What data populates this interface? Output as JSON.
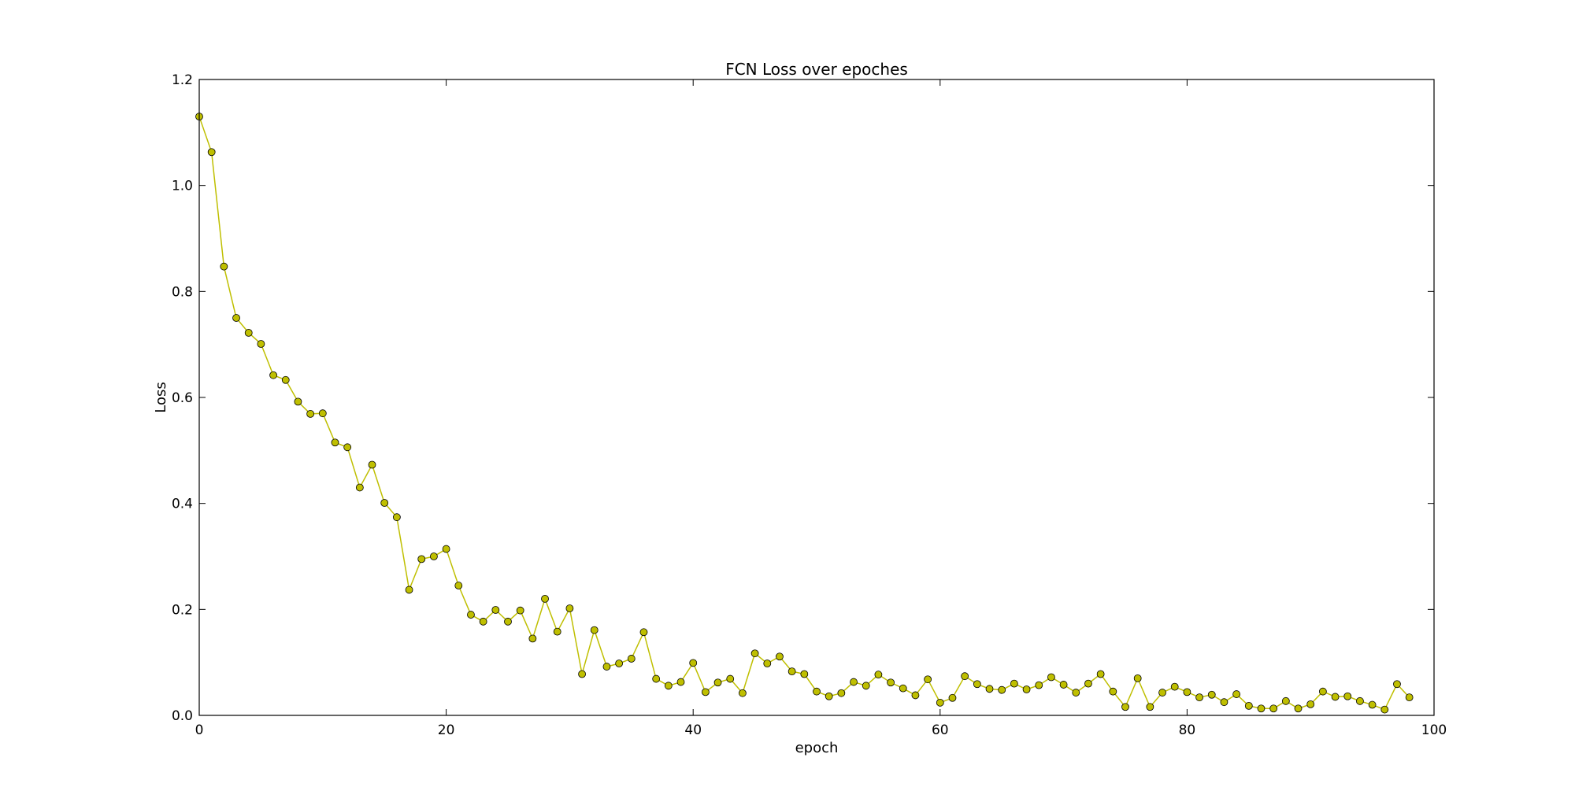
{
  "chart_data": {
    "type": "line",
    "title": "FCN Loss over epoches",
    "xlabel": "epoch",
    "ylabel": "Loss",
    "xlim": [
      0,
      100
    ],
    "ylim": [
      0,
      1.2
    ],
    "xticks": [
      0,
      20,
      40,
      60,
      80,
      100
    ],
    "xtick_labels": [
      "0",
      "20",
      "40",
      "60",
      "80",
      "100"
    ],
    "yticks": [
      0,
      0.2,
      0.4,
      0.6,
      0.8,
      1.0,
      1.2
    ],
    "ytick_labels": [
      "0.0",
      "0.2",
      "0.4",
      "0.6",
      "0.8",
      "1.0",
      "1.2"
    ],
    "grid": false,
    "legend": "none",
    "series": [
      {
        "color": "#bfbf00",
        "marker": "circle",
        "x": [
          0,
          1,
          2,
          3,
          4,
          5,
          6,
          7,
          8,
          9,
          10,
          11,
          12,
          13,
          14,
          15,
          16,
          17,
          18,
          19,
          20,
          21,
          22,
          23,
          24,
          25,
          26,
          27,
          28,
          29,
          30,
          31,
          32,
          33,
          34,
          35,
          36,
          37,
          38,
          39,
          40,
          41,
          42,
          43,
          44,
          45,
          46,
          47,
          48,
          49,
          50,
          51,
          52,
          53,
          54,
          55,
          56,
          57,
          58,
          59,
          60,
          61,
          62,
          63,
          64,
          65,
          66,
          67,
          68,
          69,
          70,
          71,
          72,
          73,
          74,
          75,
          76,
          77,
          78,
          79,
          80,
          81,
          82,
          83,
          84,
          85,
          86,
          87,
          88,
          89,
          90,
          91,
          92,
          93,
          94,
          95,
          96,
          97,
          98
        ],
        "y": [
          1.13,
          1.063,
          0.847,
          0.75,
          0.722,
          0.701,
          0.642,
          0.633,
          0.592,
          0.569,
          0.57,
          0.515,
          0.506,
          0.43,
          0.473,
          0.401,
          0.374,
          0.237,
          0.295,
          0.3,
          0.314,
          0.245,
          0.19,
          0.177,
          0.199,
          0.177,
          0.198,
          0.145,
          0.22,
          0.158,
          0.202,
          0.078,
          0.161,
          0.092,
          0.098,
          0.107,
          0.157,
          0.069,
          0.056,
          0.063,
          0.099,
          0.044,
          0.062,
          0.069,
          0.042,
          0.117,
          0.098,
          0.111,
          0.083,
          0.078,
          0.045,
          0.036,
          0.042,
          0.063,
          0.056,
          0.077,
          0.062,
          0.051,
          0.038,
          0.068,
          0.024,
          0.033,
          0.074,
          0.059,
          0.05,
          0.048,
          0.06,
          0.049,
          0.057,
          0.072,
          0.058,
          0.043,
          0.06,
          0.078,
          0.045,
          0.016,
          0.07,
          0.016,
          0.043,
          0.054,
          0.044,
          0.034,
          0.039,
          0.025,
          0.04,
          0.018,
          0.013,
          0.013,
          0.027,
          0.013,
          0.021,
          0.045,
          0.035,
          0.036,
          0.027,
          0.02,
          0.011,
          0.059,
          0.034
        ]
      }
    ]
  }
}
